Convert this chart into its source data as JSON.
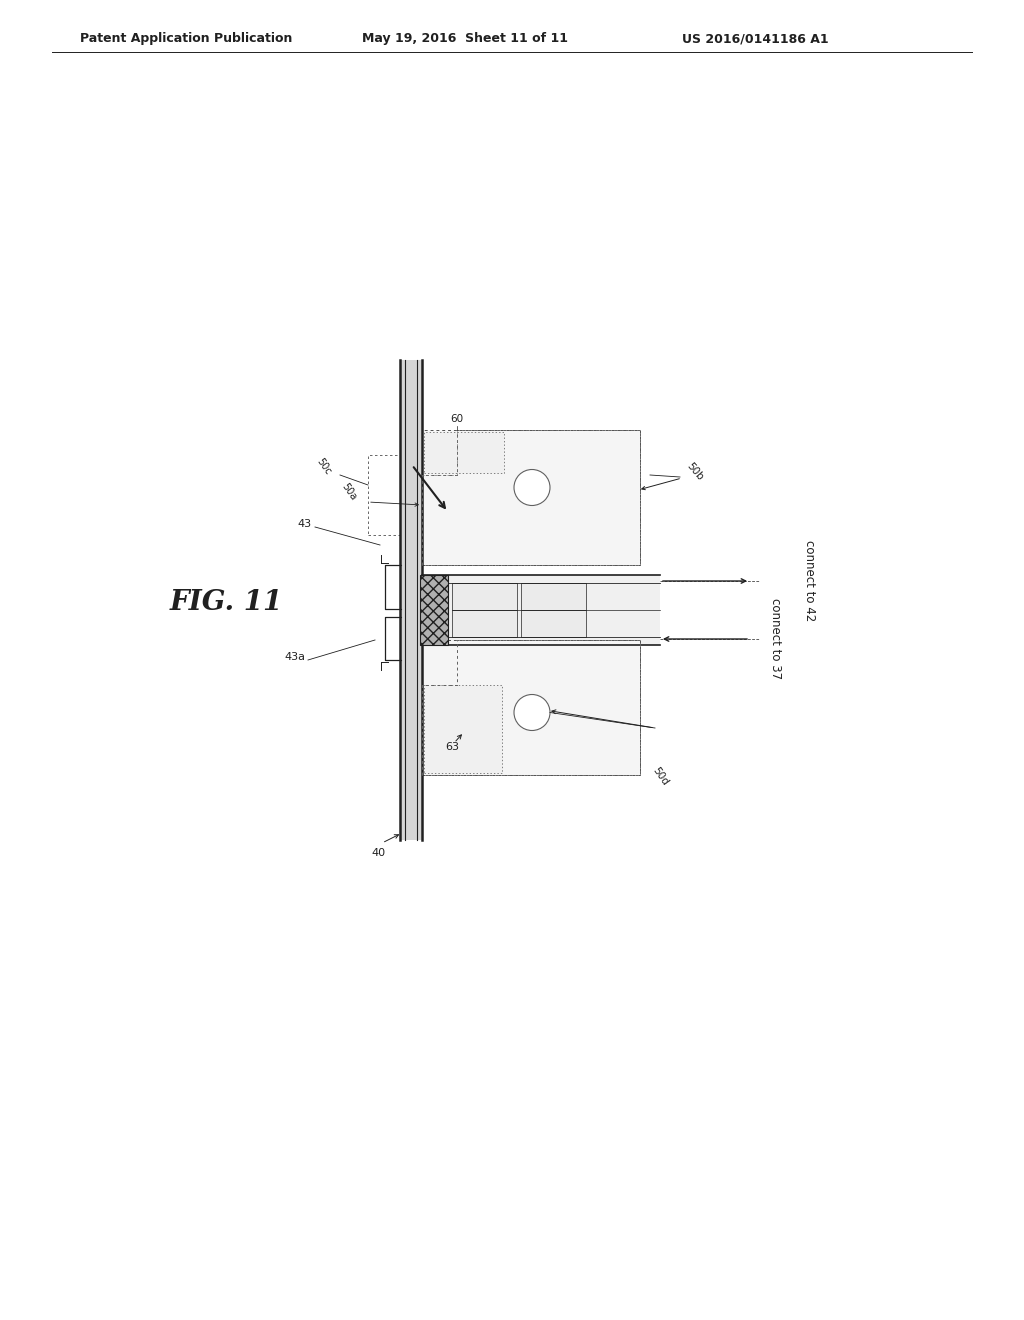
{
  "header_left": "Patent Application Publication",
  "header_mid": "May 19, 2016  Sheet 11 of 11",
  "header_right": "US 2016/0141186 A1",
  "fig_label": "FIG. 11",
  "bg": "#ffffff",
  "lc": "#404040",
  "lc_dark": "#202020",
  "gray_rail": "#c0c0c0",
  "dot_fill": "#f0f0f0",
  "hatch_fill": "#a0a0a0",
  "chan_fill": "#e8e8e8"
}
